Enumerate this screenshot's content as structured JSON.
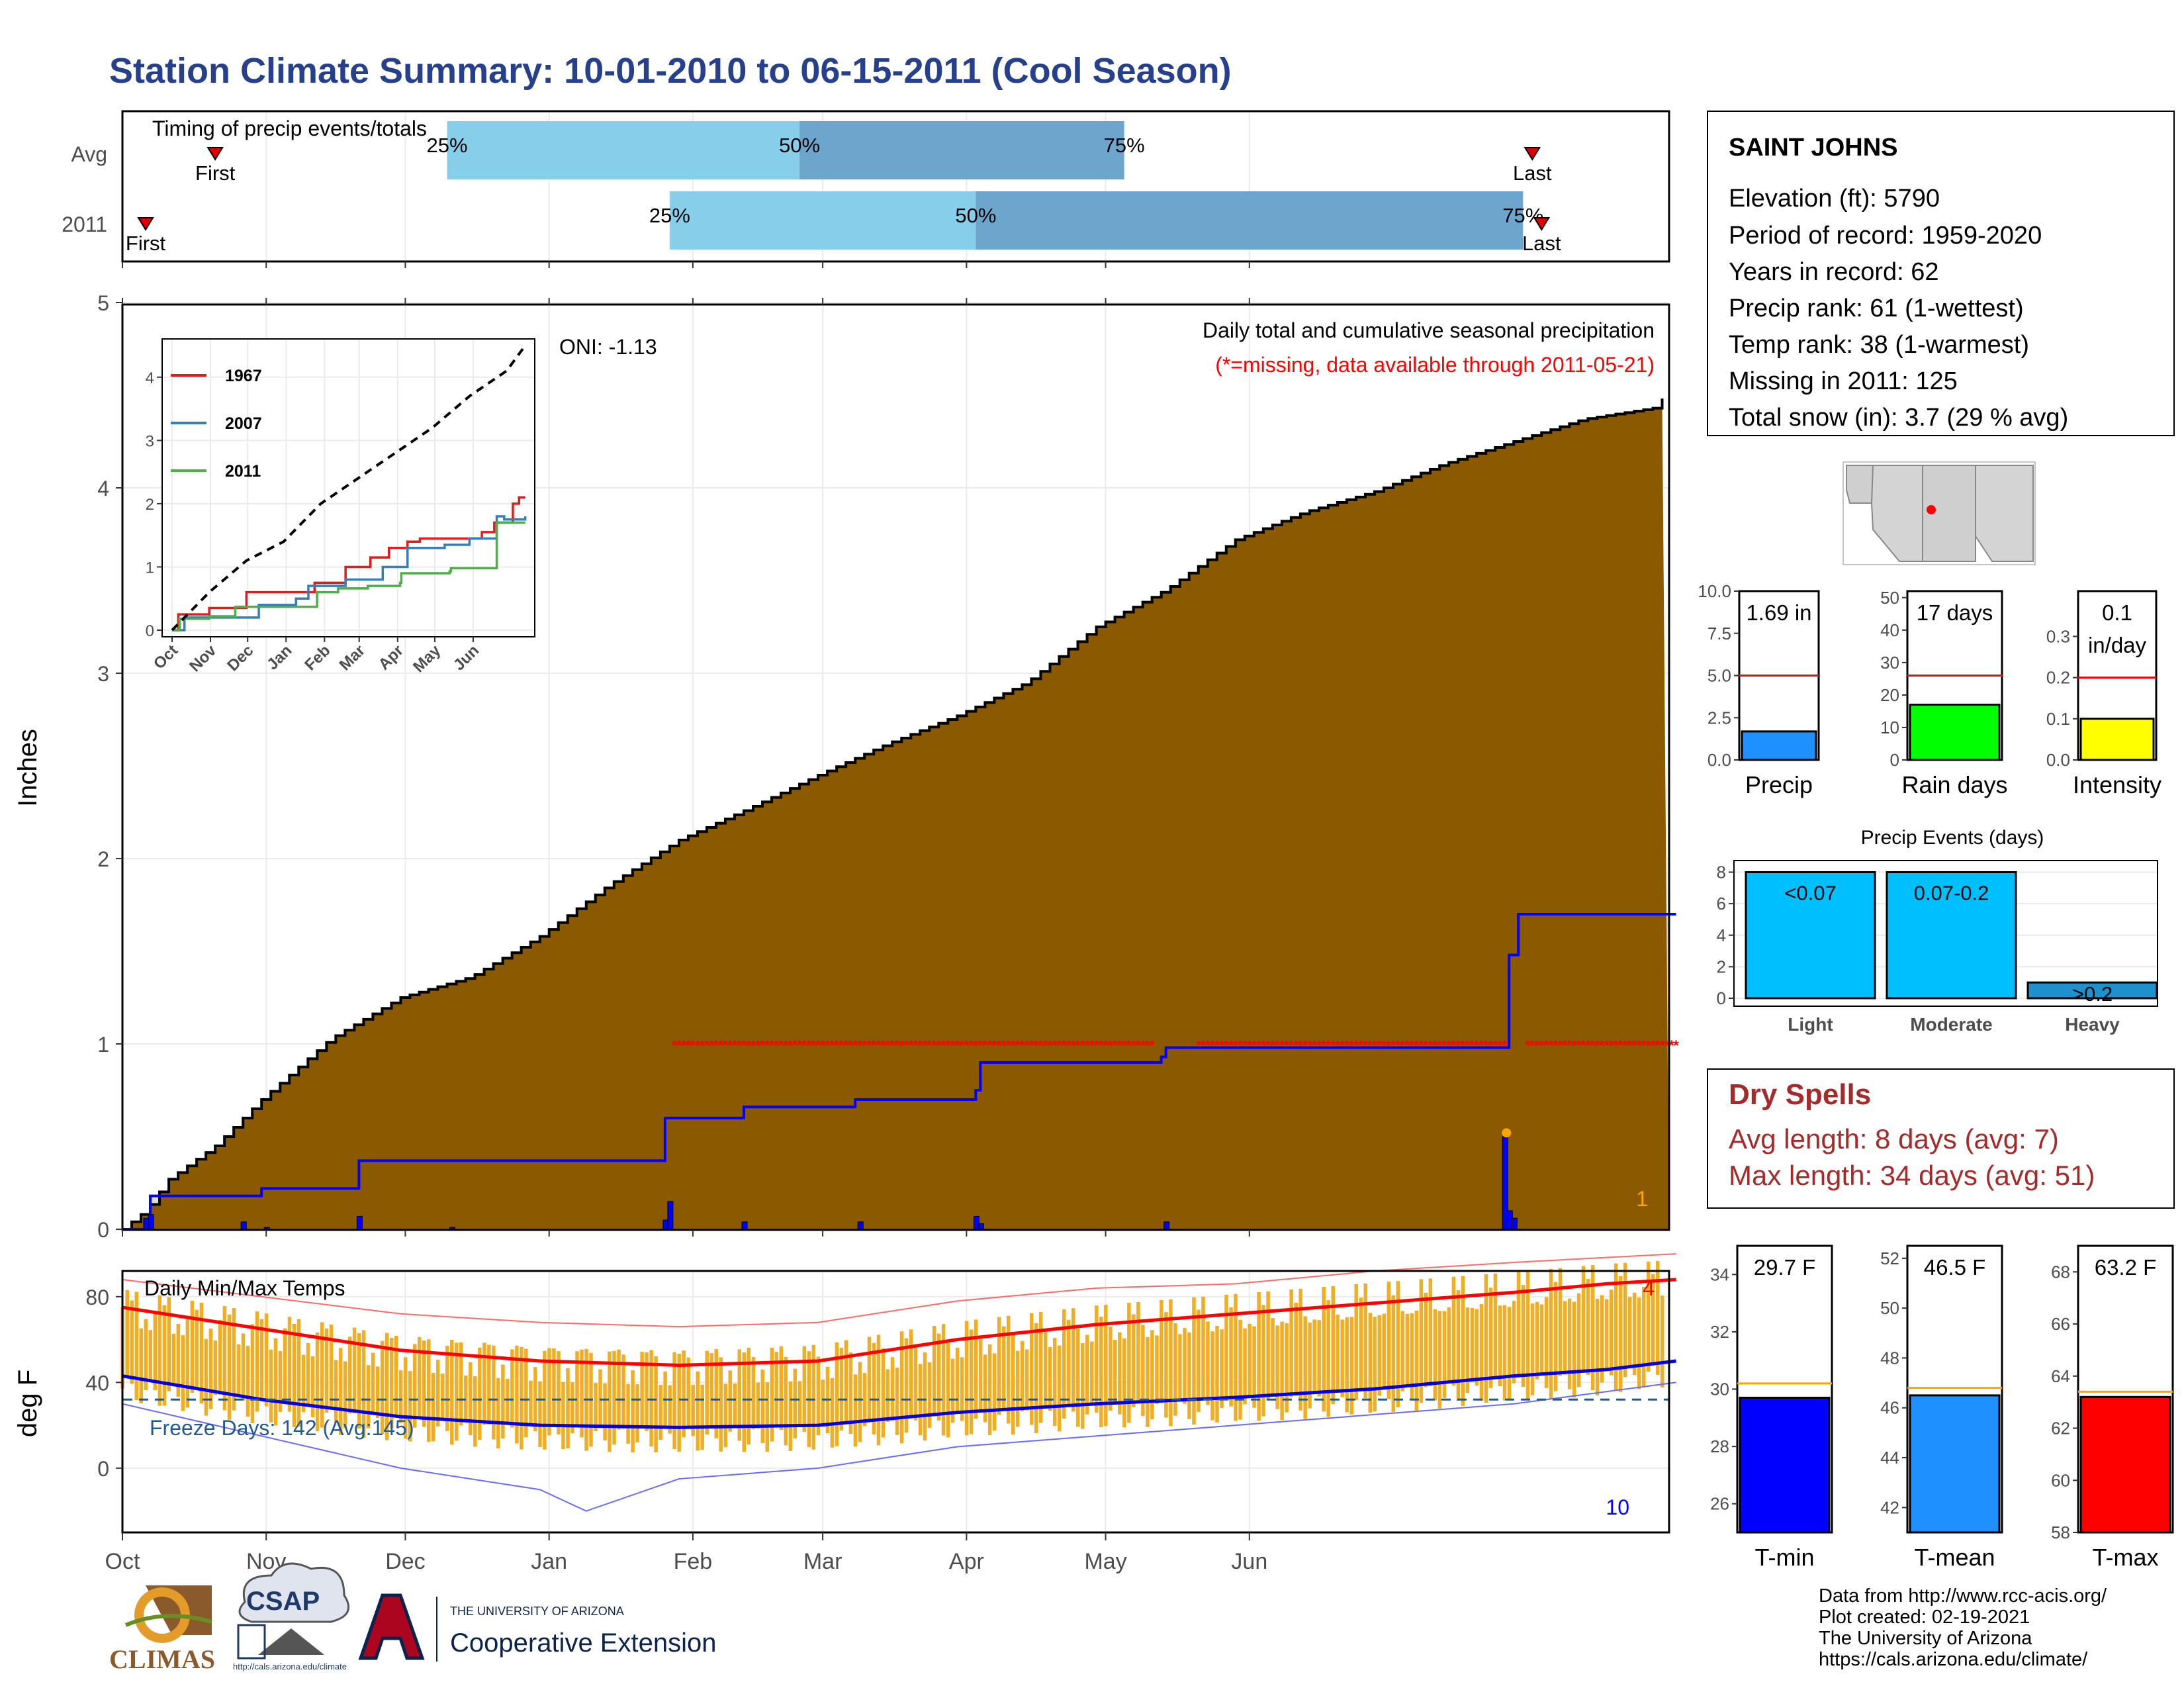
{
  "title": "Station Climate Summary: 10-01-2010 to 06-15-2011 (Cool Season)",
  "colors": {
    "title": "#27408B",
    "precip_fill": "#8B5A00",
    "missing_gray": "#DEDEDE",
    "season_line": "#0000FF",
    "missing_star": "#FF0000",
    "quartile_light": "#87CEEB",
    "quartile_dark": "#6CA6CD",
    "temp_bar": "#F0AE24",
    "tmax_avg": "#FF0000",
    "tmin_avg": "#0000E0",
    "freeze_line": "#1F5A96",
    "dry_spell_text": "#A52A2A"
  },
  "timing_panel": {
    "title": "Timing of precip events/totals",
    "rows": [
      {
        "label": "Avg",
        "first_day": 20,
        "q25_day": 70,
        "q50_day": 146,
        "q75_day": 216,
        "last_day": 304,
        "q25_label": "25%",
        "q50_label": "50%",
        "q75_label": "75%",
        "first_label": "First",
        "last_label": "Last"
      },
      {
        "label": "2011",
        "first_day": 5,
        "q25_day": 118,
        "q50_day": 184,
        "q75_day": 302,
        "last_day": 306,
        "q25_label": "25%",
        "q50_label": "50%",
        "q75_label": "75%",
        "first_label": "First",
        "last_label": "Last"
      }
    ]
  },
  "main_panel": {
    "ylabel": "Inches",
    "legend_line1": "Daily total and cumulative seasonal precipitation",
    "legend_line2": "(*=missing, data available through 2011-05-21)",
    "oni": "ONI: -1.13",
    "corner_count": "1"
  },
  "chart_data": [
    {
      "type": "area",
      "name": "main_precip",
      "x_unit": "day of season (0 = Oct 1)",
      "ylim": [
        0,
        5
      ],
      "yticks": [
        0,
        1,
        2,
        3,
        4,
        5
      ],
      "avg_cumulative": {
        "x": [
          0,
          5,
          10,
          20,
          30,
          45,
          60,
          75,
          90,
          105,
          120,
          135,
          150,
          165,
          180,
          195,
          210,
          225,
          240,
          255,
          270,
          285,
          300,
          315,
          330,
          335
        ],
        "y": [
          0,
          0.1,
          0.27,
          0.45,
          0.7,
          1.03,
          1.25,
          1.36,
          1.58,
          1.86,
          2.1,
          2.27,
          2.45,
          2.62,
          2.77,
          2.95,
          3.25,
          3.45,
          3.72,
          3.87,
          3.98,
          4.13,
          4.25,
          4.37,
          4.43,
          4.56
        ]
      },
      "season_cumulative": {
        "x": [
          0,
          6,
          26,
          30,
          50,
          51,
          116,
          117,
          134,
          158,
          184,
          185,
          224,
          225,
          298,
          299,
          301,
          335
        ],
        "y": [
          0,
          0.18,
          0.18,
          0.22,
          0.22,
          0.37,
          0.37,
          0.6,
          0.66,
          0.7,
          0.75,
          0.9,
          0.93,
          0.98,
          0.98,
          1.48,
          1.7,
          1.7
        ]
      },
      "daily_precip": {
        "x": [
          5,
          6,
          26,
          31,
          51,
          71,
          117,
          118,
          134,
          159,
          184,
          185,
          225,
          298,
          299,
          300
        ],
        "y": [
          0.06,
          0.08,
          0.04,
          0.01,
          0.07,
          0.01,
          0.05,
          0.15,
          0.04,
          0.04,
          0.07,
          0.03,
          0.04,
          0.5,
          0.1,
          0.06
        ]
      },
      "missing_days": {
        "ranges": [
          [
            119,
            222
          ],
          [
            232,
            298
          ],
          [
            303,
            335
          ]
        ],
        "y": 1.0
      }
    },
    {
      "type": "line",
      "name": "inset_cumulative",
      "categories": [
        "Oct",
        "Nov",
        "Dec",
        "Jan",
        "Feb",
        "Mar",
        "Apr",
        "May",
        "Jun"
      ],
      "ylim": [
        0,
        4.5
      ],
      "yticks": [
        0,
        1,
        2,
        3,
        4
      ],
      "series": [
        {
          "name": "1967",
          "color": "#E41A1C",
          "x": [
            0,
            5,
            30,
            60,
            90,
            115,
            140,
            160,
            175,
            190,
            200,
            230,
            250,
            260,
            262,
            275,
            280,
            285
          ],
          "y": [
            0,
            0.25,
            0.35,
            0.6,
            0.6,
            0.75,
            1.0,
            1.15,
            1.3,
            1.4,
            1.45,
            1.45,
            1.55,
            1.7,
            1.7,
            2.0,
            2.1,
            2.1
          ]
        },
        {
          "name": "2007",
          "color": "#377EB8",
          "x": [
            0,
            10,
            40,
            70,
            100,
            110,
            140,
            170,
            190,
            220,
            240,
            262,
            268,
            285
          ],
          "y": [
            0,
            0.2,
            0.2,
            0.4,
            0.5,
            0.7,
            0.8,
            1.0,
            1.3,
            1.35,
            1.45,
            1.8,
            1.75,
            1.8
          ]
        },
        {
          "name": "2011",
          "color": "#4DAF4A",
          "x": [
            0,
            6,
            26,
            30,
            50,
            51,
            116,
            117,
            134,
            158,
            184,
            185,
            224,
            225,
            250,
            262,
            285
          ],
          "y": [
            0,
            0.18,
            0.18,
            0.22,
            0.22,
            0.37,
            0.37,
            0.6,
            0.66,
            0.7,
            0.75,
            0.9,
            0.93,
            0.98,
            0.98,
            1.7,
            1.7
          ]
        },
        {
          "name": "avg",
          "color": "#000000",
          "dashed": true,
          "x": [
            0,
            30,
            60,
            90,
            120,
            150,
            180,
            210,
            240,
            270,
            285
          ],
          "y": [
            0,
            0.6,
            1.1,
            1.4,
            2.0,
            2.4,
            2.8,
            3.2,
            3.7,
            4.1,
            4.5
          ]
        }
      ]
    },
    {
      "type": "bar",
      "name": "temp_panel",
      "ylim": [
        -30,
        92
      ],
      "yticks": [
        0,
        40,
        80
      ],
      "categories": [
        "Oct",
        "Nov",
        "Dec",
        "Jan",
        "Feb",
        "Mar",
        "Apr",
        "May",
        "Jun"
      ],
      "tmax_avg": {
        "x": [
          0,
          30,
          60,
          90,
          120,
          150,
          180,
          210,
          240,
          270,
          300,
          320,
          335
        ],
        "y": [
          75,
          65,
          55,
          50,
          48,
          50,
          60,
          67,
          72,
          77,
          82,
          86,
          88
        ]
      },
      "tmin_avg": {
        "x": [
          0,
          30,
          60,
          90,
          120,
          150,
          180,
          210,
          240,
          270,
          300,
          320,
          335
        ],
        "y": [
          43,
          32,
          24,
          20,
          19,
          20,
          26,
          30,
          33,
          37,
          43,
          46,
          50
        ]
      },
      "tmax_record": {
        "x": [
          0,
          30,
          60,
          90,
          120,
          150,
          180,
          210,
          240,
          270,
          300,
          335
        ],
        "y": [
          88,
          80,
          72,
          68,
          66,
          68,
          78,
          84,
          86,
          92,
          96,
          100
        ]
      },
      "tmin_record": {
        "x": [
          0,
          30,
          60,
          90,
          100,
          120,
          150,
          180,
          210,
          240,
          270,
          300,
          335
        ],
        "y": [
          30,
          15,
          0,
          -10,
          -20,
          -5,
          0,
          10,
          15,
          20,
          25,
          30,
          40
        ]
      },
      "freeze_threshold": 32
    }
  ],
  "temp_panel": {
    "title": "Daily Min/Max Temps",
    "ylabel": "deg F",
    "freeze_text": "Freeze Days: 142 (Avg:145)",
    "count_hot": "4",
    "count_cold": "10",
    "month_labels": [
      "Oct",
      "Nov",
      "Dec",
      "Jan",
      "Feb",
      "Mar",
      "Apr",
      "May",
      "Jun"
    ],
    "month_days": [
      0,
      31,
      61,
      92,
      123,
      151,
      182,
      212,
      243
    ]
  },
  "station_info": {
    "name": "SAINT JOHNS",
    "lines": [
      "Elevation (ft): 5790",
      "Period of record: 1959-2020",
      "Years in record: 62",
      "Precip rank: 61 (1-wettest)",
      "Temp rank: 38 (1-warmest)",
      "Missing in 2011: 125",
      "Total snow (in): 3.7 (29 % avg)"
    ]
  },
  "mini_charts": [
    {
      "name": "Precip",
      "label": "1.69 in",
      "value": 1.69,
      "avg": 5.0,
      "ylim": [
        0,
        10
      ],
      "ticks": [
        "0.0",
        "2.5",
        "5.0",
        "7.5",
        "10.0"
      ],
      "tickvals": [
        0,
        2.5,
        5,
        7.5,
        10
      ],
      "color": "#1E90FF"
    },
    {
      "name": "Rain days",
      "label": "17 days",
      "value": 17,
      "avg": 26,
      "ylim": [
        0,
        52
      ],
      "ticks": [
        "0",
        "10",
        "20",
        "30",
        "40",
        "50"
      ],
      "tickvals": [
        0,
        10,
        20,
        30,
        40,
        50
      ],
      "color": "#00FF00"
    },
    {
      "name": "Intensity",
      "label": "0.1",
      "label2": "in/day",
      "value": 0.1,
      "avg": 0.2,
      "ylim": [
        0,
        0.41
      ],
      "ticks": [
        "0.0",
        "0.1",
        "0.2",
        "0.3"
      ],
      "tickvals": [
        0,
        0.1,
        0.2,
        0.3
      ],
      "color": "#FFFF00"
    }
  ],
  "events_chart": {
    "title": "Precip Events (days)",
    "categories": [
      "Light",
      "Moderate",
      "Heavy"
    ],
    "bar_labels": [
      "<0.07",
      "0.07-0.2",
      ">0.2"
    ],
    "values": [
      8,
      8,
      1
    ],
    "ylim": [
      0,
      8.4
    ],
    "ticks": [
      "0",
      "2",
      "4",
      "6",
      "8"
    ],
    "tickvals": [
      0,
      2,
      4,
      6,
      8
    ],
    "colors": [
      "#00BFFF",
      "#00BFFF",
      "#1E90CD"
    ]
  },
  "dry_spells": {
    "title": "Dry Spells",
    "avg_line": "Avg length: 8 days (avg: 7)",
    "max_line": "Max length: 34 days (avg: 51)"
  },
  "temp_minis": [
    {
      "name": "T-min",
      "label": "29.7 F",
      "value": 29.7,
      "avg": 30.2,
      "ylim": [
        25,
        35
      ],
      "ticks": [
        "26",
        "28",
        "30",
        "32",
        "34"
      ],
      "tickvals": [
        26,
        28,
        30,
        32,
        34
      ],
      "color": "#0000FF"
    },
    {
      "name": "T-mean",
      "label": "46.5 F",
      "value": 46.5,
      "avg": 46.8,
      "ylim": [
        41,
        52.5
      ],
      "ticks": [
        "42",
        "44",
        "46",
        "48",
        "50",
        "52"
      ],
      "tickvals": [
        42,
        44,
        46,
        48,
        50,
        52
      ],
      "color": "#1E90FF"
    },
    {
      "name": "T-max",
      "label": "63.2 F",
      "value": 63.2,
      "avg": 63.4,
      "ylim": [
        58,
        69
      ],
      "ticks": [
        "58",
        "60",
        "62",
        "64",
        "66",
        "68"
      ],
      "tickvals": [
        58,
        60,
        62,
        64,
        66,
        68
      ],
      "color": "#FF0000"
    }
  ],
  "footer": {
    "lines": [
      "Data from http://www.rcc-acis.org/",
      "Plot created: 02-19-2021",
      "The University of Arizona",
      "https://cals.arizona.edu/climate/"
    ],
    "logos": {
      "climas": "CLIMAS",
      "csap": "CSAP",
      "csap_url": "http://cals.arizona.edu/climate",
      "ua_top": "THE UNIVERSITY OF ARIZONA",
      "ua_bottom": "Cooperative Extension"
    }
  }
}
